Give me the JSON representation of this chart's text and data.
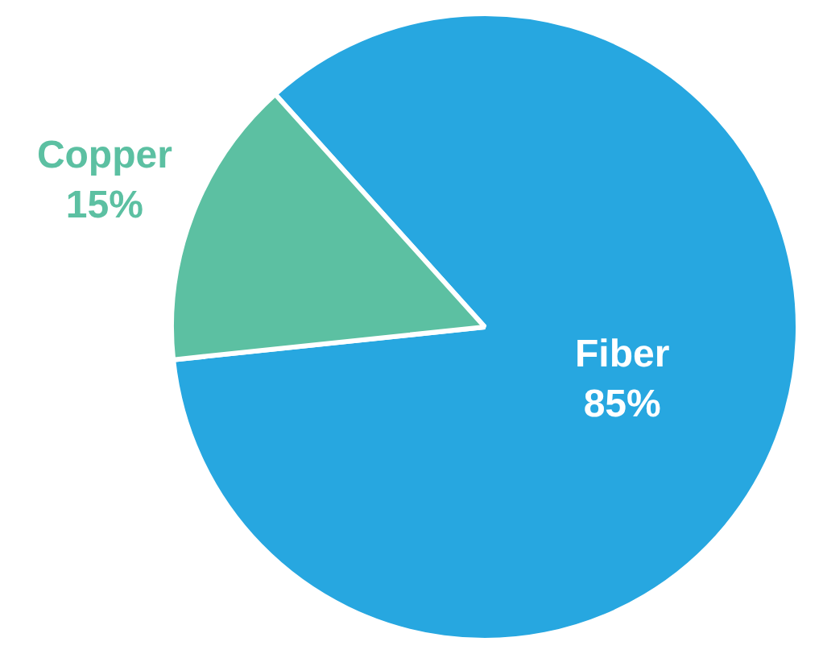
{
  "chart_data": {
    "type": "pie",
    "categories": [
      "Fiber",
      "Copper"
    ],
    "values": [
      85,
      15
    ],
    "value_labels": [
      "85%",
      "15%"
    ],
    "colors": [
      "#27a7e0",
      "#5cc0a2"
    ],
    "legend": false
  }
}
